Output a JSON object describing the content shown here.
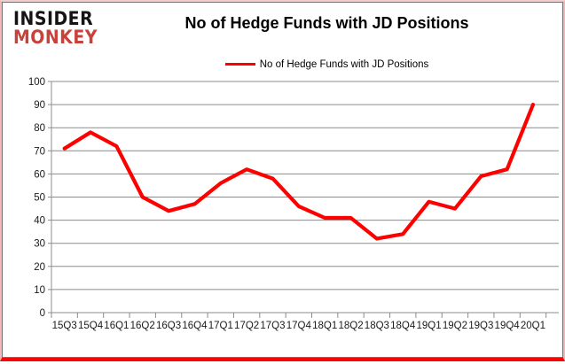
{
  "logo": {
    "line1": "INSIDER",
    "line2": "MONKEY"
  },
  "header": {
    "title": "No of Hedge Funds with JD Positions"
  },
  "legend": {
    "label": "No of Hedge Funds with JD Positions",
    "color": "#ff0000"
  },
  "chart_data": {
    "type": "line",
    "title": "No of Hedge Funds with JD Positions",
    "categories": [
      "15Q3",
      "15Q4",
      "16Q1",
      "16Q2",
      "16Q3",
      "16Q4",
      "17Q1",
      "17Q2",
      "17Q3",
      "17Q4",
      "18Q1",
      "18Q2",
      "18Q3",
      "18Q4",
      "19Q1",
      "19Q2",
      "19Q3",
      "19Q4",
      "20Q1"
    ],
    "series": [
      {
        "name": "No of Hedge Funds with JD Positions",
        "values": [
          71,
          78,
          72,
          50,
          44,
          47,
          56,
          62,
          58,
          46,
          41,
          41,
          32,
          34,
          48,
          45,
          59,
          62,
          90
        ]
      }
    ],
    "xlabel": "",
    "ylabel": "",
    "ylim": [
      0,
      100
    ],
    "ytick_step": 10,
    "grid": true,
    "legend_position": "top-center",
    "line_color": "#ff0000",
    "grid_color": "#8c8c8c",
    "tick_label_color": "#1a1a1a"
  }
}
